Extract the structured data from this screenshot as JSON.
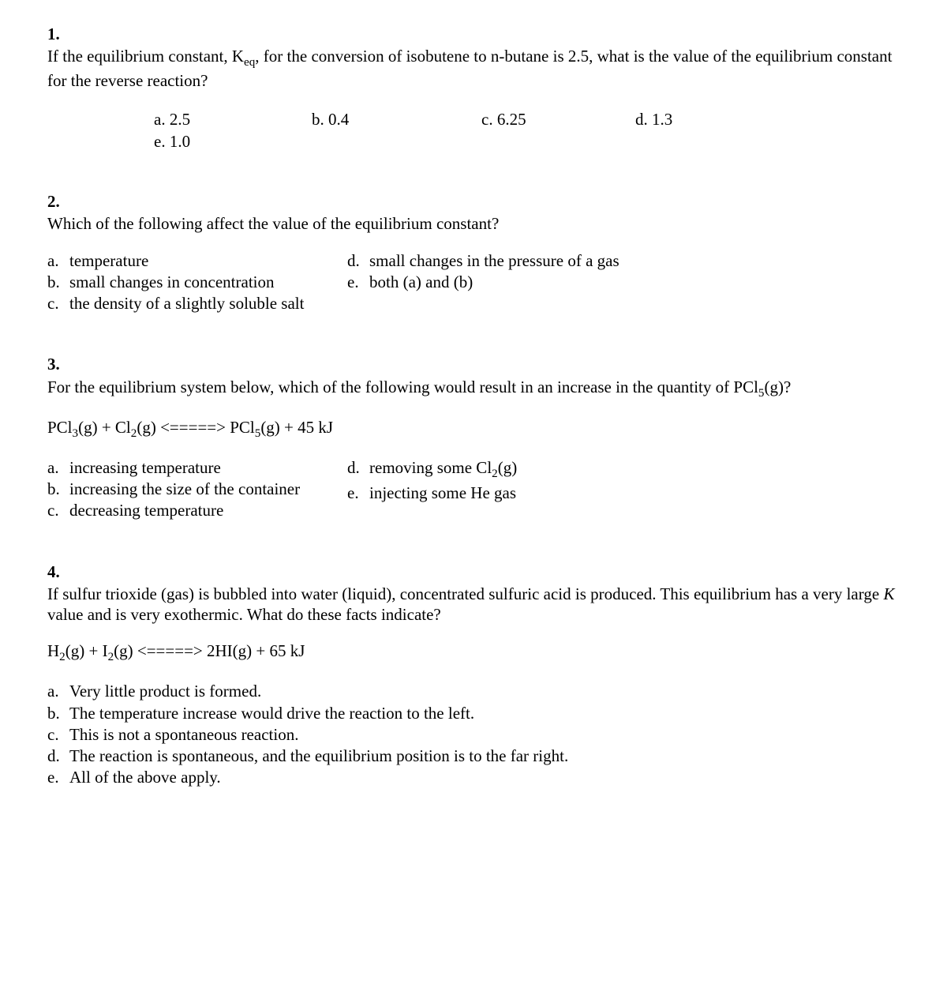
{
  "q1": {
    "number": "1.",
    "stem_before_keq": "If the equilibrium constant, K",
    "stem_sub": "eq",
    "stem_after_keq": ", for the conversion of isobutene to n-butane is 2.5, what is the value of the equilibrium constant for the reverse reaction?",
    "opt_a": "a. 2.5",
    "opt_b": "b. 0.4",
    "opt_c": "c. 6.25",
    "opt_d": "d. 1.3",
    "opt_e": "e.  1.0"
  },
  "q2": {
    "number": "2.",
    "stem": "Which of the following affect the value of the equilibrium constant?",
    "a": {
      "let": "a.",
      "txt": "temperature"
    },
    "b": {
      "let": "b.",
      "txt": "small changes in concentration"
    },
    "c": {
      "let": "c.",
      "txt": "the density of a slightly soluble salt"
    },
    "d": {
      "let": "d.",
      "txt": "small changes in the pressure of a gas"
    },
    "e": {
      "let": "e.",
      "txt": "both (a) and (b)"
    }
  },
  "q3": {
    "number": "3.",
    "stem_before": "For the equilibrium system below, which of the following would result in an increase in the quantity of PCl",
    "stem_sub": "5",
    "stem_after": "(g)?",
    "eq": {
      "p1": "PCl",
      "s1": "3",
      "p2": "(g) + Cl",
      "s2": "2",
      "p3": "(g) <=====> PCl",
      "s3": "5",
      "p4": "(g) + 45 kJ"
    },
    "a": {
      "let": "a.",
      "txt": "increasing temperature"
    },
    "b": {
      "let": "b.",
      "txt": "increasing the size of the container"
    },
    "c": {
      "let": "c.",
      "txt": "decreasing temperature"
    },
    "d": {
      "let": "d.",
      "before": "removing some Cl",
      "sub": "2",
      "after": "(g)"
    },
    "e": {
      "let": "e.",
      "txt": "injecting some He gas"
    }
  },
  "q4": {
    "number": "4.",
    "stem_before_k": "If sulfur trioxide (gas) is bubbled into water (liquid), concentrated sulfuric acid is produced. This equilibrium has a very large ",
    "k_italic": "K",
    "stem_after_k": " value and is very exothermic. What do these facts indicate?",
    "eq": {
      "p1": "H",
      "s1": "2",
      "p2": "(g) + I",
      "s2": "2",
      "p3": "(g) <=====> 2HI(g) + 65 kJ"
    },
    "a": {
      "let": "a.",
      "txt": "Very little product is formed."
    },
    "b": {
      "let": "b.",
      "txt": "The temperature increase would drive the reaction to the left."
    },
    "c": {
      "let": "c.",
      "txt": "This is not a spontaneous reaction."
    },
    "d": {
      "let": "d.",
      "txt": "The reaction is spontaneous, and the equilibrium position is to the far right."
    },
    "e": {
      "let": "e.",
      "txt": "All of the above apply."
    }
  }
}
